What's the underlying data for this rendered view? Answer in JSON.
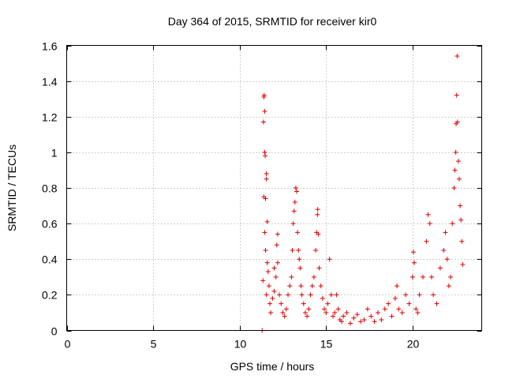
{
  "chart_data": {
    "type": "scatter",
    "title": "Day 364 of 2015, SRMTID for receiver kir0",
    "xlabel": "GPS time / hours",
    "ylabel": "SRMTID / TECUs",
    "xlim": [
      0,
      24
    ],
    "ylim": [
      0,
      1.6
    ],
    "xticks": [
      0,
      5,
      10,
      15,
      20
    ],
    "xtick_labels": [
      "0",
      "5",
      "10",
      "15",
      "20"
    ],
    "yticks": [
      0,
      0.2,
      0.4,
      0.6,
      0.8,
      1.0,
      1.2,
      1.4,
      1.6
    ],
    "ytick_labels": [
      "0",
      "0.2",
      "0.4",
      "0.6",
      "0.8",
      "1",
      "1.2",
      "1.4",
      "1.6"
    ],
    "grid": true,
    "marker": "+",
    "color": "#e00000",
    "series": [
      {
        "name": "SRMTID",
        "points": [
          [
            11.3,
            0.0
          ],
          [
            11.35,
            0.28
          ],
          [
            11.4,
            1.31
          ],
          [
            11.42,
            1.32
          ],
          [
            11.45,
            1.23
          ],
          [
            11.38,
            1.17
          ],
          [
            11.45,
            1.0
          ],
          [
            11.48,
            0.98
          ],
          [
            11.4,
            0.75
          ],
          [
            11.5,
            0.74
          ],
          [
            11.55,
            0.85
          ],
          [
            11.55,
            0.88
          ],
          [
            11.6,
            0.61
          ],
          [
            11.45,
            0.55
          ],
          [
            11.5,
            0.45
          ],
          [
            11.6,
            0.38
          ],
          [
            11.65,
            0.33
          ],
          [
            11.7,
            0.25
          ],
          [
            11.55,
            0.2
          ],
          [
            11.75,
            0.15
          ],
          [
            11.8,
            0.1
          ],
          [
            11.9,
            0.18
          ],
          [
            12.0,
            0.22
          ],
          [
            12.1,
            0.3
          ],
          [
            12.0,
            0.35
          ],
          [
            12.2,
            0.38
          ],
          [
            12.15,
            0.48
          ],
          [
            12.2,
            0.54
          ],
          [
            12.3,
            0.2
          ],
          [
            12.4,
            0.15
          ],
          [
            12.5,
            0.1
          ],
          [
            12.6,
            0.08
          ],
          [
            12.7,
            0.12
          ],
          [
            12.8,
            0.2
          ],
          [
            12.9,
            0.25
          ],
          [
            13.0,
            0.3
          ],
          [
            13.05,
            0.45
          ],
          [
            13.1,
            0.6
          ],
          [
            13.15,
            0.67
          ],
          [
            13.2,
            0.72
          ],
          [
            13.25,
            0.8
          ],
          [
            13.3,
            0.78
          ],
          [
            13.35,
            0.55
          ],
          [
            13.4,
            0.45
          ],
          [
            13.45,
            0.4
          ],
          [
            13.5,
            0.35
          ],
          [
            13.55,
            0.25
          ],
          [
            13.6,
            0.2
          ],
          [
            13.7,
            0.15
          ],
          [
            13.8,
            0.1
          ],
          [
            13.9,
            0.08
          ],
          [
            14.0,
            0.12
          ],
          [
            14.1,
            0.2
          ],
          [
            14.2,
            0.25
          ],
          [
            14.3,
            0.3
          ],
          [
            14.4,
            0.45
          ],
          [
            14.45,
            0.55
          ],
          [
            14.5,
            0.65
          ],
          [
            14.52,
            0.68
          ],
          [
            14.55,
            0.54
          ],
          [
            14.6,
            0.35
          ],
          [
            14.7,
            0.25
          ],
          [
            14.8,
            0.18
          ],
          [
            14.9,
            0.12
          ],
          [
            15.0,
            0.1
          ],
          [
            15.1,
            0.15
          ],
          [
            15.2,
            0.4
          ],
          [
            15.3,
            0.2
          ],
          [
            15.4,
            0.08
          ],
          [
            15.5,
            0.1
          ],
          [
            15.6,
            0.2
          ],
          [
            15.7,
            0.12
          ],
          [
            15.8,
            0.06
          ],
          [
            15.9,
            0.05
          ],
          [
            16.0,
            0.08
          ],
          [
            16.2,
            0.1
          ],
          [
            16.4,
            0.04
          ],
          [
            16.6,
            0.07
          ],
          [
            16.8,
            0.09
          ],
          [
            17.0,
            0.05
          ],
          [
            17.2,
            0.06
          ],
          [
            17.4,
            0.12
          ],
          [
            17.6,
            0.08
          ],
          [
            17.8,
            0.05
          ],
          [
            18.0,
            0.1
          ],
          [
            18.2,
            0.06
          ],
          [
            18.4,
            0.12
          ],
          [
            18.6,
            0.15
          ],
          [
            18.8,
            0.08
          ],
          [
            19.0,
            0.18
          ],
          [
            19.1,
            0.25
          ],
          [
            19.2,
            0.12
          ],
          [
            19.4,
            0.1
          ],
          [
            19.6,
            0.2
          ],
          [
            19.8,
            0.15
          ],
          [
            20.0,
            0.3
          ],
          [
            20.05,
            0.44
          ],
          [
            20.1,
            0.38
          ],
          [
            20.2,
            0.12
          ],
          [
            20.3,
            0.1
          ],
          [
            20.4,
            0.2
          ],
          [
            20.6,
            0.3
          ],
          [
            20.8,
            0.5
          ],
          [
            20.9,
            0.65
          ],
          [
            21.0,
            0.6
          ],
          [
            21.1,
            0.3
          ],
          [
            21.2,
            0.2
          ],
          [
            21.4,
            0.15
          ],
          [
            21.6,
            0.35
          ],
          [
            21.8,
            0.45
          ],
          [
            21.9,
            0.55
          ],
          [
            22.0,
            0.4
          ],
          [
            22.1,
            0.25
          ],
          [
            22.2,
            0.3
          ],
          [
            22.3,
            0.6
          ],
          [
            22.4,
            0.8
          ],
          [
            22.45,
            0.9
          ],
          [
            22.5,
            1.0
          ],
          [
            22.52,
            1.16
          ],
          [
            22.55,
            1.32
          ],
          [
            22.58,
            1.54
          ],
          [
            22.6,
            1.17
          ],
          [
            22.65,
            0.95
          ],
          [
            22.7,
            0.85
          ],
          [
            22.75,
            0.7
          ],
          [
            22.8,
            0.62
          ],
          [
            22.85,
            0.5
          ],
          [
            22.9,
            0.37
          ]
        ]
      }
    ]
  }
}
